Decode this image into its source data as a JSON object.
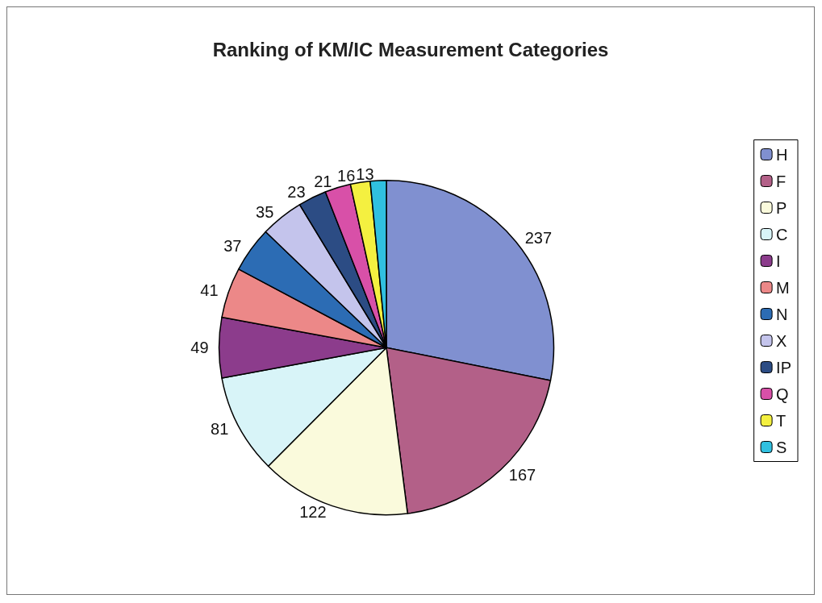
{
  "chart_data": {
    "type": "pie",
    "title": "Ranking of KM/IC Measurement Categories",
    "categories": [
      "H",
      "F",
      "P",
      "C",
      "I",
      "M",
      "N",
      "X",
      "IP",
      "Q",
      "T",
      "S"
    ],
    "values": [
      237,
      167,
      122,
      81,
      49,
      41,
      37,
      35,
      23,
      21,
      16,
      13
    ],
    "colors": [
      "#8090d0",
      "#b36088",
      "#fafadc",
      "#d8f4f8",
      "#8c3c8c",
      "#ec8888",
      "#2c6cb4",
      "#c4c4ec",
      "#2c4c84",
      "#d850a8",
      "#f4f040",
      "#30c0e0"
    ],
    "data_labels": true,
    "legend": "right"
  }
}
